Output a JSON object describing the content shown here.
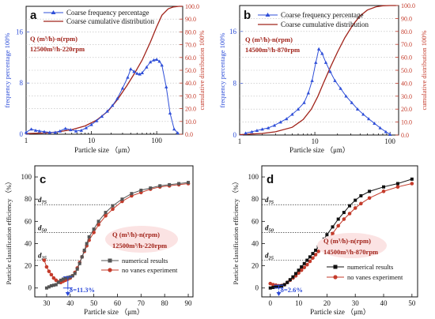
{
  "colors": {
    "blue": "#2f4fd8",
    "red": "#c43b2b",
    "darkred": "#a1241b",
    "gray": "#555555",
    "black": "#111111",
    "ellipse_fill": "#fbe3e3",
    "delta_blue": "#2b49d8"
  },
  "chart_data": [
    {
      "type": "line",
      "panel_label": "a",
      "xlabel": "Particle size （μm）",
      "ylabel": "frequency percentage 100%",
      "y2label": "cumulative distribution 100%",
      "xscale": "log",
      "xlim": [
        1,
        250
      ],
      "x_ticks": [
        1,
        10,
        100
      ],
      "ylim": [
        0,
        20
      ],
      "y_ticks": [
        0,
        8,
        16
      ],
      "y2lim": [
        0,
        100
      ],
      "y2_ticks": [
        "0.0",
        "10.0",
        "20.0",
        "30.0",
        "40.0",
        "50.0",
        "60.0",
        "70.0",
        "80.0",
        "90.0",
        "100.0"
      ],
      "legend": [
        "Coarse frequency percentage",
        "Coarse cumulative distribution"
      ],
      "annotation": [
        "Q (m³/h)-n(rpm)",
        "12500m³/h-220rpm"
      ],
      "series": [
        {
          "name": "Coarse frequency percentage",
          "axis": "left",
          "x": [
            1,
            1.2,
            1.4,
            1.6,
            1.9,
            2.3,
            2.8,
            3.3,
            4,
            4.8,
            5.8,
            7,
            8.3,
            10,
            12,
            14.5,
            17.5,
            21,
            25,
            30,
            36,
            40,
            45,
            50,
            55,
            60,
            70,
            80,
            90,
            100,
            110,
            120,
            140,
            160,
            185,
            210
          ],
          "y": [
            0.3,
            0.8,
            0.6,
            0.5,
            0.4,
            0.3,
            0.3,
            0.5,
            0.9,
            0.7,
            0.5,
            0.6,
            1.0,
            1.5,
            2.1,
            2.8,
            3.6,
            4.5,
            5.6,
            7.2,
            8.9,
            10.2,
            9.8,
            9.5,
            9.4,
            9.6,
            10.5,
            11.3,
            11.6,
            11.7,
            11.4,
            10.8,
            7.4,
            3.3,
            0.8,
            0.2
          ]
        },
        {
          "name": "Coarse cumulative distribution",
          "axis": "right",
          "x": [
            1,
            2,
            3,
            5,
            8,
            12,
            18,
            25,
            35,
            45,
            60,
            80,
            100,
            120,
            150,
            180,
            220,
            250
          ],
          "y": [
            0.5,
            1.0,
            1.8,
            3.5,
            6.5,
            11,
            18,
            27,
            38,
            47,
            58,
            72,
            84,
            93,
            98,
            99.5,
            100,
            100
          ]
        }
      ]
    },
    {
      "type": "line",
      "panel_label": "b",
      "xlabel": "Particle size （μm）",
      "ylabel": "frequency percentage 100%",
      "y2label": "cumulative distribution 100%",
      "xscale": "log",
      "xlim": [
        1,
        130
      ],
      "x_ticks": [
        1,
        10,
        100
      ],
      "ylim": [
        0,
        20
      ],
      "y_ticks": [
        0,
        8,
        16
      ],
      "y2lim": [
        0,
        100
      ],
      "y2_ticks": [
        "0.0",
        "10.0",
        "20.0",
        "30.0",
        "40.0",
        "50.0",
        "60.0",
        "70.0",
        "80.0",
        "90.0",
        "100.0"
      ],
      "legend": [
        "Coarse frequency percentage",
        "Coarse cumulative distribution"
      ],
      "annotation": [
        "Q (m³/h)-n(rpm)",
        "14500m³/h-870rpm"
      ],
      "series": [
        {
          "name": "Coarse frequency percentage",
          "axis": "left",
          "x": [
            1.2,
            1.45,
            1.7,
            2.0,
            2.4,
            2.9,
            3.5,
            4.2,
            5.0,
            6.0,
            7.2,
            8.2,
            9.2,
            10.3,
            11.3,
            12.5,
            14,
            16,
            18.5,
            22,
            26,
            31,
            37,
            44,
            52,
            62,
            74,
            88,
            100
          ],
          "y": [
            0.3,
            0.5,
            0.7,
            0.9,
            1.1,
            1.5,
            2.0,
            2.5,
            3.2,
            4.0,
            5.0,
            6.5,
            8.4,
            11.2,
            13.3,
            12.6,
            11.2,
            9.8,
            8.4,
            7.2,
            6.0,
            5.0,
            4.0,
            3.2,
            2.5,
            1.8,
            1.1,
            0.5,
            0.1
          ]
        },
        {
          "name": "Coarse cumulative distribution",
          "axis": "right",
          "x": [
            1,
            2,
            3,
            5,
            7,
            9,
            11,
            13,
            16,
            20,
            25,
            32,
            40,
            50,
            65,
            80,
            100,
            120
          ],
          "y": [
            0.3,
            1.2,
            2.5,
            6,
            12,
            20,
            30,
            40,
            52,
            64,
            75,
            85,
            92,
            96.5,
            99,
            99.8,
            100,
            100
          ]
        }
      ]
    },
    {
      "type": "line",
      "panel_label": "c",
      "xlabel": "Particle size （μm）",
      "ylabel": "Particle classification efficiency （%）",
      "xlim": [
        25,
        92
      ],
      "x_ticks": [
        30,
        40,
        50,
        60,
        70,
        80,
        90
      ],
      "ylim": [
        -8,
        110
      ],
      "y_ticks": [
        0,
        20,
        40,
        60,
        80,
        100
      ],
      "reference_lines": [
        "d75",
        "d50",
        "d25"
      ],
      "delta": "δ=11.3%",
      "annotation": [
        "Q (m³/h)-n(rpm)",
        "12500m³/h-220rpm"
      ],
      "legend": [
        "numerical results",
        "no vanes experiment"
      ],
      "series": [
        {
          "name": "numerical results",
          "x": [
            30,
            31,
            32,
            33,
            34,
            35,
            36,
            37,
            38,
            39,
            40,
            41,
            42,
            43,
            44,
            45,
            46,
            47,
            48,
            50,
            52,
            55,
            58,
            62,
            66,
            70,
            74,
            78,
            82,
            86,
            90
          ],
          "y": [
            0,
            1,
            2,
            2.5,
            3,
            5,
            7,
            8,
            9,
            9.5,
            10,
            11,
            13,
            17,
            22,
            28,
            34,
            40,
            46,
            53,
            60,
            68,
            74,
            80,
            85,
            88,
            90,
            92,
            93,
            94,
            95
          ]
        },
        {
          "name": "no vanes experiment",
          "x": [
            29,
            30,
            31,
            32,
            33,
            34,
            35,
            36,
            37,
            38,
            39,
            40,
            41,
            42,
            43,
            44,
            45,
            46,
            47,
            48,
            50,
            52,
            55,
            58,
            62,
            66,
            70,
            74,
            78,
            82,
            86,
            90
          ],
          "y": [
            25,
            19,
            15,
            12,
            9,
            7,
            5.5,
            5,
            6,
            7,
            8,
            9,
            11,
            14,
            18,
            23,
            28,
            33,
            38,
            43,
            50,
            57,
            65,
            71,
            78,
            83,
            86,
            89,
            91,
            92,
            93,
            94
          ]
        }
      ]
    },
    {
      "type": "line",
      "panel_label": "d",
      "xlabel": "Particle size （μm）",
      "ylabel": "Particle classification efficiency （%）",
      "xlim": [
        -3,
        52
      ],
      "x_ticks": [
        0,
        10,
        20,
        30,
        40,
        50
      ],
      "ylim": [
        -8,
        110
      ],
      "y_ticks": [
        0,
        20,
        40,
        60,
        80,
        100
      ],
      "reference_lines": [
        "d75",
        "d50",
        "d25"
      ],
      "delta": "δ=2.6%",
      "annotation": [
        "Q (m³/h)-n(rpm)",
        "14500m³/h-870rpm"
      ],
      "legend": [
        "numerical results",
        "no vanes experiment"
      ],
      "series": [
        {
          "name": "numerical results",
          "x": [
            0,
            1,
            2,
            3,
            4,
            5,
            6,
            7,
            8,
            9,
            10,
            11,
            12,
            13,
            14,
            15,
            16,
            17,
            18,
            19,
            20,
            22,
            24,
            26,
            28,
            30,
            32,
            35,
            40,
            45,
            50
          ],
          "y": [
            0,
            0.5,
            1,
            1.5,
            2,
            3,
            5,
            7.5,
            10,
            13,
            16,
            19,
            22,
            25,
            28,
            31,
            34,
            37,
            40,
            44,
            48,
            55,
            62,
            68,
            74,
            79,
            83,
            87,
            91,
            94,
            98
          ]
        },
        {
          "name": "no vanes experiment",
          "x": [
            0,
            1,
            2,
            3,
            4,
            5,
            6,
            7,
            8,
            9,
            10,
            11,
            12,
            13,
            14,
            15,
            16,
            17,
            18,
            19,
            20,
            22,
            24,
            26,
            28,
            30,
            32,
            35,
            40,
            45,
            50
          ],
          "y": [
            4,
            3,
            2.5,
            2,
            2.2,
            3,
            5,
            7,
            9,
            11,
            13.5,
            16,
            18.5,
            21,
            24,
            27,
            30,
            33,
            36,
            39,
            42,
            49,
            56,
            62,
            67,
            72,
            76,
            81,
            87,
            91,
            94
          ]
        }
      ]
    }
  ]
}
